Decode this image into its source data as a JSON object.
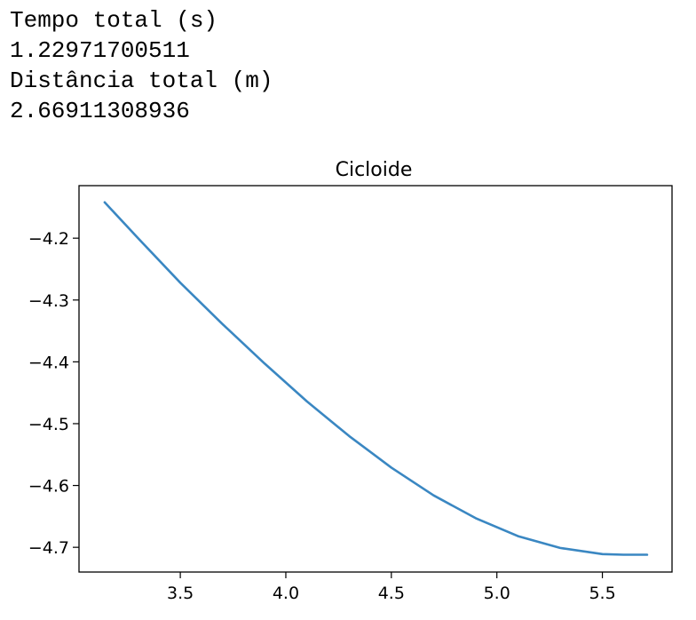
{
  "output": {
    "lines": [
      "Tempo total (s)",
      "1.22971700511",
      "Distância total (m)",
      "2.66911308936"
    ]
  },
  "chart_data": {
    "type": "line",
    "title": "Cicloide",
    "xlabel": "",
    "ylabel": "",
    "xlim": [
      3.02,
      5.83
    ],
    "ylim": [
      -4.74,
      -4.115
    ],
    "xticks": [
      3.5,
      4.0,
      4.5,
      5.0,
      5.5
    ],
    "xtick_labels": [
      "3.5",
      "4.0",
      "4.5",
      "5.0",
      "5.5"
    ],
    "yticks": [
      -4.2,
      -4.3,
      -4.4,
      -4.5,
      -4.6,
      -4.7
    ],
    "ytick_labels": [
      "−4.2",
      "−4.3",
      "−4.4",
      "−4.5",
      "−4.6",
      "−4.7"
    ],
    "grid": false,
    "series": [
      {
        "color": "#3a87c2",
        "x": [
          3.1416,
          3.3,
          3.5,
          3.7,
          3.9,
          4.1,
          4.3,
          4.5,
          4.7,
          4.9,
          5.1,
          5.3,
          5.5,
          5.6,
          5.712
        ],
        "y": [
          -4.142,
          -4.2,
          -4.272,
          -4.339,
          -4.403,
          -4.464,
          -4.52,
          -4.571,
          -4.616,
          -4.653,
          -4.682,
          -4.701,
          -4.711,
          -4.712,
          -4.712
        ]
      }
    ]
  }
}
